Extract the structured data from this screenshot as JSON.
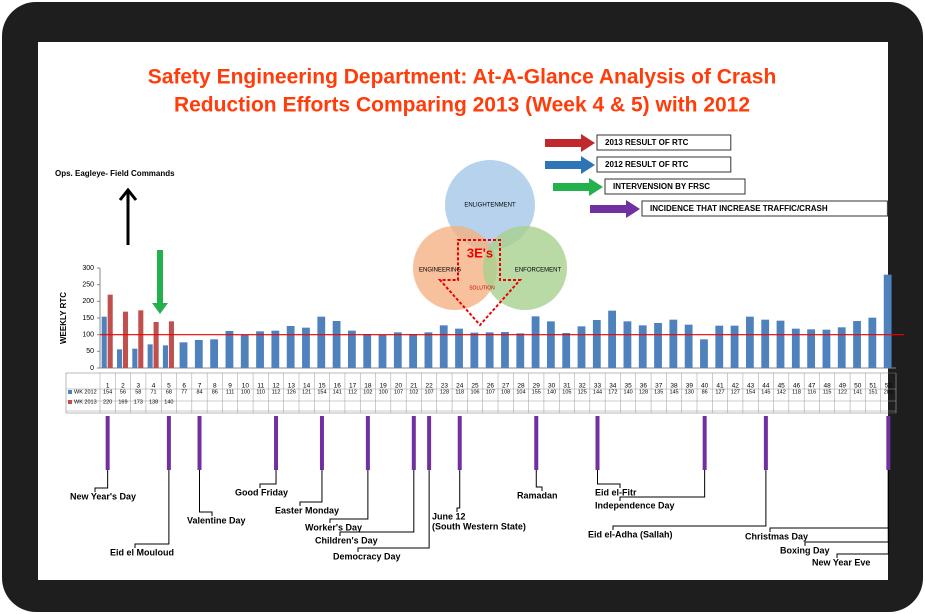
{
  "chart_data": {
    "type": "bar",
    "title": "Safety Engineering Department: At-A-Glance Analysis of Crash",
    "subtitle": "Reduction Efforts Comparing 2013 (Week 4 & 5) with 2012",
    "y_label": "WEEKLY RTC",
    "categories": [
      1,
      2,
      3,
      4,
      5,
      6,
      7,
      8,
      9,
      10,
      11,
      12,
      13,
      14,
      15,
      16,
      17,
      18,
      19,
      20,
      21,
      22,
      23,
      24,
      25,
      26,
      27,
      28,
      29,
      30,
      31,
      32,
      33,
      34,
      35,
      36,
      37,
      38,
      39,
      40,
      41,
      42,
      43,
      44,
      45,
      46,
      47,
      48,
      49,
      50,
      51,
      52
    ],
    "series": [
      {
        "name": "WK 2012",
        "color": "#4f81bd",
        "values": [
          154,
          56,
          58,
          71,
          68,
          77,
          84,
          86,
          111,
          100,
          110,
          112,
          126,
          121,
          154,
          141,
          112,
          102,
          100,
          107,
          102,
          107,
          128,
          118,
          106,
          107,
          108,
          104,
          155,
          140,
          105,
          125,
          144,
          172,
          140,
          128,
          135,
          145,
          130,
          86,
          127,
          127,
          154,
          145,
          142,
          118,
          116,
          115,
          122,
          141,
          151,
          280
        ]
      },
      {
        "name": "WK 2013",
        "color": "#c0504d",
        "values": [
          220,
          169,
          173,
          138,
          140,
          null,
          null,
          null,
          null,
          null,
          null,
          null,
          null,
          null,
          null,
          null,
          null,
          null,
          null,
          null,
          null,
          null,
          null,
          null,
          null,
          null,
          null,
          null,
          null,
          null,
          null,
          null,
          null,
          null,
          null,
          null,
          null,
          null,
          null,
          null,
          null,
          null,
          null,
          null,
          null,
          null,
          null,
          null,
          null,
          null,
          null,
          null
        ]
      }
    ],
    "reference_line": 100,
    "ylim": [
      0,
      300
    ],
    "yticks": [
      0,
      50,
      100,
      150,
      200,
      250,
      300
    ],
    "grid": false,
    "legend_items": [
      {
        "label": "2013  RESULT OF RTC",
        "color": "#c0282d"
      },
      {
        "label": "2012  RESULT OF RTC",
        "color": "#2e75b6"
      },
      {
        "label": "INTERVENSION BY FRSC",
        "color": "#22b14c"
      },
      {
        "label": "INCIDENCE THAT INCREASE TRAFFIC/CRASH",
        "color": "#7030a0"
      }
    ],
    "annotation": "Ops. Eagleye- Field Commands",
    "venn": {
      "top": "ENLIGHTENMENT",
      "left": "ENGINEERING",
      "right": "ENFORCEMENT",
      "center": "3E's",
      "bottom": "SOLUTION"
    },
    "events": [
      {
        "label": "New Year's Day",
        "week": 1
      },
      {
        "label": "Eid el Mouloud",
        "week": 5
      },
      {
        "label": "Valentine Day",
        "week": 7
      },
      {
        "label": "Good Friday",
        "week": 12
      },
      {
        "label": "Easter Monday",
        "week": 15
      },
      {
        "label": "Worker's Day",
        "week": 18
      },
      {
        "label": "Children's Day",
        "week": 21
      },
      {
        "label": "Democracy Day",
        "week": 22
      },
      {
        "label": "June 12",
        "sub": "(South Western  State)",
        "week": 24
      },
      {
        "label": "Ramadan",
        "week": 29
      },
      {
        "label": "Eid el-Fitr",
        "week": 33
      },
      {
        "label": "Independence Day",
        "week": 40
      },
      {
        "label": "Eid el-Adha (Sallah)",
        "week": 44
      },
      {
        "label": "Christmas Day",
        "week": 52
      },
      {
        "label": "Boxing Day",
        "week": 52
      },
      {
        "label": "New Year Eve",
        "week": 52
      }
    ]
  }
}
